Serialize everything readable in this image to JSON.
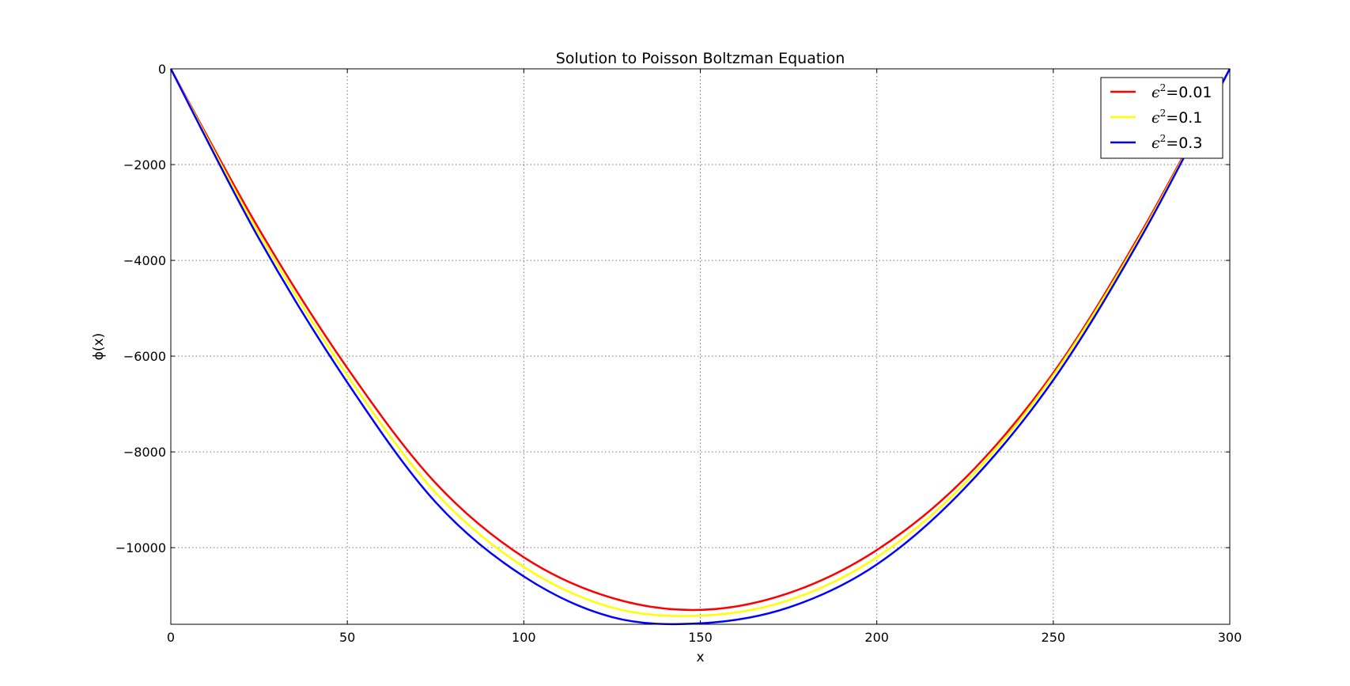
{
  "chart_data": {
    "type": "line",
    "title": "Solution to Poisson Boltzman Equation",
    "xlabel": "x",
    "ylabel": "ϕ(x)",
    "xlim": [
      0,
      300
    ],
    "ylim": [
      -11600,
      0
    ],
    "xticks": [
      0,
      50,
      100,
      150,
      200,
      250,
      300
    ],
    "yticks": [
      0,
      -2000,
      -4000,
      -6000,
      -8000,
      -10000
    ],
    "ytick_labels": [
      "0",
      "−2000",
      "−4000",
      "−6000",
      "−8000",
      "−10000"
    ],
    "grid": true,
    "legend_position": "top-right",
    "x": [
      0,
      25,
      50,
      75,
      100,
      125,
      150,
      175,
      200,
      225,
      250,
      275,
      300
    ],
    "series": [
      {
        "name": "ϵ²=0.01",
        "name_base": "ϵ",
        "name_sup": "2",
        "name_rest": "=0.01",
        "color": "#ff0000",
        "values": [
          0,
          -3350,
          -6250,
          -8650,
          -10200,
          -11050,
          -11300,
          -10950,
          -10050,
          -8550,
          -6350,
          -3400,
          0
        ]
      },
      {
        "name": "ϵ²=0.1",
        "name_base": "ϵ",
        "name_sup": "2",
        "name_rest": "=0.1",
        "color": "#ffff00",
        "values": [
          0,
          -3450,
          -6400,
          -8850,
          -10400,
          -11250,
          -11420,
          -11100,
          -10200,
          -8650,
          -6400,
          -3450,
          0
        ]
      },
      {
        "name": "ϵ²=0.3",
        "name_base": "ϵ",
        "name_sup": "2",
        "name_rest": "=0.3",
        "color": "#0000ff",
        "values": [
          0,
          -3550,
          -6550,
          -9050,
          -10600,
          -11450,
          -11580,
          -11250,
          -10350,
          -8750,
          -6500,
          -3500,
          0
        ]
      }
    ]
  }
}
